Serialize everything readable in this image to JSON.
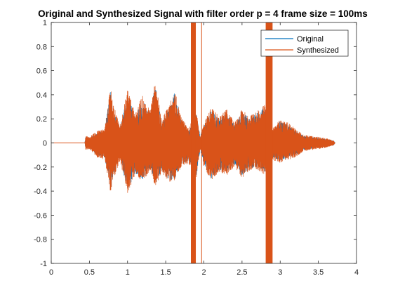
{
  "colors": {
    "original": "#0072bd",
    "synthesized": "#d95319",
    "axis": "#262626",
    "background": "#ffffff"
  },
  "chart_data": {
    "type": "line",
    "title": "Original and Synthesized Signal with filter order p = 4 frame size = 100ms",
    "xlabel": "",
    "ylabel": "",
    "xlim": [
      0,
      4
    ],
    "ylim": [
      -1,
      1
    ],
    "grid": false,
    "legend_position": "top-right",
    "xticks": [
      0,
      0.5,
      1,
      1.5,
      2,
      2.5,
      3,
      3.5,
      4
    ],
    "xtick_labels": [
      "0",
      "0.5",
      "1",
      "1.5",
      "2",
      "2.5",
      "3",
      "3.5",
      "4"
    ],
    "yticks": [
      -1,
      -0.8,
      -0.6,
      -0.4,
      -0.2,
      0,
      0.2,
      0.4,
      0.6,
      0.8,
      1
    ],
    "ytick_labels": [
      "-1",
      "-0.8",
      "-0.6",
      "-0.4",
      "-0.2",
      "0",
      "0.2",
      "0.4",
      "0.6",
      "0.8",
      "1"
    ],
    "series": [
      {
        "name": "Original",
        "color": "#0072bd",
        "envelope_x": [
          0.0,
          0.44,
          0.45,
          0.5,
          0.6,
          0.7,
          0.78,
          0.8,
          0.9,
          1.0,
          1.1,
          1.2,
          1.3,
          1.36,
          1.45,
          1.55,
          1.62,
          1.7,
          1.8,
          1.9,
          1.95,
          2.0,
          2.1,
          2.2,
          2.3,
          2.4,
          2.5,
          2.6,
          2.7,
          2.8,
          2.9,
          3.0,
          3.1,
          3.2,
          3.3,
          3.4,
          3.5,
          3.6,
          3.7,
          3.72
        ],
        "envelope_max": [
          0.0,
          0.0,
          0.05,
          0.04,
          0.08,
          0.1,
          0.47,
          0.3,
          0.12,
          0.4,
          0.22,
          0.35,
          0.25,
          0.5,
          0.18,
          0.3,
          0.42,
          0.2,
          0.1,
          0.25,
          0.06,
          0.15,
          0.28,
          0.2,
          0.26,
          0.15,
          0.26,
          0.2,
          0.25,
          0.3,
          0.1,
          0.18,
          0.15,
          0.1,
          0.06,
          0.05,
          0.04,
          0.03,
          0.02,
          0.0
        ],
        "envelope_min": [
          0.0,
          0.0,
          -0.05,
          -0.04,
          -0.1,
          -0.12,
          -0.4,
          -0.3,
          -0.12,
          -0.4,
          -0.25,
          -0.3,
          -0.2,
          -0.35,
          -0.22,
          -0.32,
          -0.3,
          -0.18,
          -0.15,
          -0.28,
          -0.06,
          -0.18,
          -0.3,
          -0.22,
          -0.25,
          -0.18,
          -0.27,
          -0.22,
          -0.2,
          -0.25,
          -0.12,
          -0.15,
          -0.12,
          -0.1,
          -0.06,
          -0.05,
          -0.04,
          -0.03,
          -0.02,
          0.0
        ]
      },
      {
        "name": "Synthesized",
        "color": "#d95319",
        "envelope_x": [
          0.0,
          0.44,
          0.45,
          0.5,
          0.6,
          0.7,
          0.78,
          0.8,
          0.9,
          1.0,
          1.1,
          1.2,
          1.3,
          1.36,
          1.45,
          1.55,
          1.62,
          1.7,
          1.8,
          1.9,
          1.95,
          2.0,
          2.1,
          2.2,
          2.3,
          2.4,
          2.5,
          2.6,
          2.7,
          2.8,
          2.9,
          3.0,
          3.1,
          3.2,
          3.3,
          3.4,
          3.5,
          3.6,
          3.7,
          3.72
        ],
        "envelope_max": [
          0.0,
          0.0,
          0.06,
          0.05,
          0.1,
          0.12,
          0.48,
          0.35,
          0.15,
          0.45,
          0.25,
          0.4,
          0.28,
          0.52,
          0.2,
          0.32,
          0.44,
          0.22,
          0.12,
          0.27,
          0.04,
          0.17,
          0.3,
          0.22,
          0.28,
          0.17,
          0.28,
          0.22,
          0.27,
          0.32,
          0.12,
          0.2,
          0.17,
          0.12,
          0.07,
          0.06,
          0.05,
          0.04,
          0.02,
          0.0
        ],
        "envelope_min": [
          0.0,
          0.0,
          -0.06,
          -0.05,
          -0.12,
          -0.14,
          -0.43,
          -0.33,
          -0.15,
          -0.42,
          -0.27,
          -0.32,
          -0.23,
          -0.37,
          -0.24,
          -0.34,
          -0.32,
          -0.2,
          -0.17,
          -0.3,
          -0.05,
          -0.2,
          -0.32,
          -0.24,
          -0.27,
          -0.2,
          -0.29,
          -0.24,
          -0.22,
          -0.27,
          -0.14,
          -0.17,
          -0.14,
          -0.12,
          -0.07,
          -0.06,
          -0.05,
          -0.04,
          -0.02,
          0.0
        ],
        "saturated_bursts": [
          {
            "x_start": 1.83,
            "x_end": 1.89,
            "min": -1,
            "max": 1,
            "solid": true
          },
          {
            "x_start": 1.89,
            "x_end": 1.97,
            "min": -1,
            "max": 1,
            "solid": false
          },
          {
            "x_start": 2.81,
            "x_end": 2.9,
            "min": -1,
            "max": 1,
            "solid": true
          }
        ]
      }
    ]
  }
}
